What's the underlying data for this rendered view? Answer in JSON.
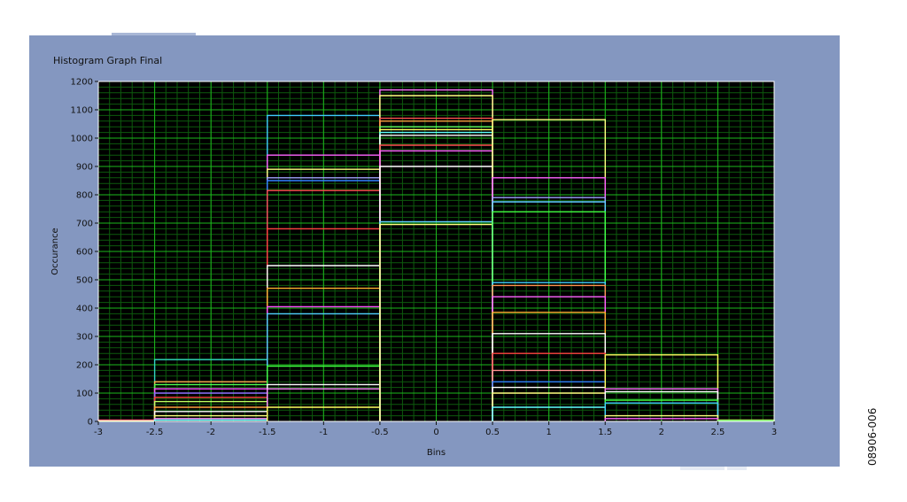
{
  "panel": {
    "title": "Histogram Graph Final",
    "figure_id": "08906-006"
  },
  "colors": {
    "plot_bg": "#000000",
    "grid_major": "#1db81d",
    "grid_minor": "#0d5a0d",
    "panel_bg": "#8497c0",
    "frame": "#ffffff"
  },
  "chart_data": {
    "type": "bar",
    "title": "Histogram Graph Final",
    "xlabel": "Bins",
    "ylabel": "Occurance",
    "xlim": [
      -3,
      3
    ],
    "ylim": [
      0,
      1200
    ],
    "xticks": [
      -3,
      -2.5,
      -2,
      -1.5,
      -1,
      -0.5,
      0,
      0.5,
      1,
      1.5,
      2,
      2.5,
      3
    ],
    "yticks": [
      0,
      100,
      200,
      300,
      400,
      500,
      600,
      700,
      800,
      900,
      1000,
      1100,
      1200
    ],
    "grid": true,
    "bins": [
      {
        "x0": -3,
        "x1": -2.5,
        "levels": [
          {
            "value": 5,
            "color": "#ff3030"
          },
          {
            "value": 3,
            "color": "#ff70ff"
          },
          {
            "value": 2,
            "color": "#ffff60"
          }
        ]
      },
      {
        "x0": -2.5,
        "x1": -1.5,
        "levels": [
          {
            "value": 218,
            "color": "#30d0c0"
          },
          {
            "value": 140,
            "color": "#ffb050"
          },
          {
            "value": 130,
            "color": "#50ff50"
          },
          {
            "value": 115,
            "color": "#ff50ff"
          },
          {
            "value": 100,
            "color": "#9070ff"
          },
          {
            "value": 85,
            "color": "#ff4040"
          },
          {
            "value": 70,
            "color": "#c0ff60"
          },
          {
            "value": 50,
            "color": "#ffa040"
          },
          {
            "value": 35,
            "color": "#ffffff"
          },
          {
            "value": 20,
            "color": "#ffff80"
          },
          {
            "value": 10,
            "color": "#ff90ff"
          },
          {
            "value": 5,
            "color": "#60ffff"
          }
        ]
      },
      {
        "x0": -1.5,
        "x1": -0.5,
        "levels": [
          {
            "value": 1080,
            "color": "#40c8ff"
          },
          {
            "value": 940,
            "color": "#ff60ff"
          },
          {
            "value": 890,
            "color": "#ffff80"
          },
          {
            "value": 860,
            "color": "#a0a0ff"
          },
          {
            "value": 850,
            "color": "#3080ff"
          },
          {
            "value": 815,
            "color": "#ff5050"
          },
          {
            "value": 680,
            "color": "#ff4040"
          },
          {
            "value": 550,
            "color": "#ffffff"
          },
          {
            "value": 470,
            "color": "#ffb030"
          },
          {
            "value": 405,
            "color": "#ff50ff"
          },
          {
            "value": 380,
            "color": "#50d0ff"
          },
          {
            "value": 195,
            "color": "#40ff40"
          },
          {
            "value": 130,
            "color": "#ffffff"
          },
          {
            "value": 115,
            "color": "#ff90ff"
          },
          {
            "value": 50,
            "color": "#ffff60"
          }
        ]
      },
      {
        "x0": -0.5,
        "x1": 0.5,
        "levels": [
          {
            "value": 1170,
            "color": "#ff70ff"
          },
          {
            "value": 1150,
            "color": "#ffff80"
          },
          {
            "value": 1070,
            "color": "#ff5050"
          },
          {
            "value": 1060,
            "color": "#ffa040"
          },
          {
            "value": 1040,
            "color": "#60ff60"
          },
          {
            "value": 1030,
            "color": "#ffff60"
          },
          {
            "value": 1020,
            "color": "#60ffff"
          },
          {
            "value": 1010,
            "color": "#ffffff"
          },
          {
            "value": 975,
            "color": "#ff5050"
          },
          {
            "value": 955,
            "color": "#ff60ff"
          },
          {
            "value": 900,
            "color": "#ffffff"
          },
          {
            "value": 705,
            "color": "#60d0ff"
          },
          {
            "value": 695,
            "color": "#ffff80"
          }
        ]
      },
      {
        "x0": 0.5,
        "x1": 1.5,
        "levels": [
          {
            "value": 1065,
            "color": "#ffff80"
          },
          {
            "value": 860,
            "color": "#ff60ff"
          },
          {
            "value": 790,
            "color": "#a0a0ff"
          },
          {
            "value": 775,
            "color": "#60d0ff"
          },
          {
            "value": 740,
            "color": "#40ff40"
          },
          {
            "value": 490,
            "color": "#40d0ff"
          },
          {
            "value": 480,
            "color": "#ff9050"
          },
          {
            "value": 440,
            "color": "#ff60ff"
          },
          {
            "value": 385,
            "color": "#ffb030"
          },
          {
            "value": 310,
            "color": "#ffffff"
          },
          {
            "value": 240,
            "color": "#ff4040"
          },
          {
            "value": 180,
            "color": "#ff9090"
          },
          {
            "value": 140,
            "color": "#3080ff"
          },
          {
            "value": 120,
            "color": "#ffffff"
          },
          {
            "value": 100,
            "color": "#ffff80"
          },
          {
            "value": 50,
            "color": "#60ffff"
          }
        ]
      },
      {
        "x0": 1.5,
        "x1": 2.5,
        "levels": [
          {
            "value": 235,
            "color": "#ffff60"
          },
          {
            "value": 115,
            "color": "#ff70ff"
          },
          {
            "value": 105,
            "color": "#ffffff"
          },
          {
            "value": 75,
            "color": "#40ff40"
          },
          {
            "value": 65,
            "color": "#40d0ff"
          },
          {
            "value": 20,
            "color": "#ffff80"
          },
          {
            "value": 10,
            "color": "#ff60ff"
          }
        ]
      },
      {
        "x0": 2.5,
        "x1": 3,
        "levels": [
          {
            "value": 5,
            "color": "#ffff60"
          },
          {
            "value": 3,
            "color": "#60ff60"
          }
        ]
      }
    ]
  }
}
